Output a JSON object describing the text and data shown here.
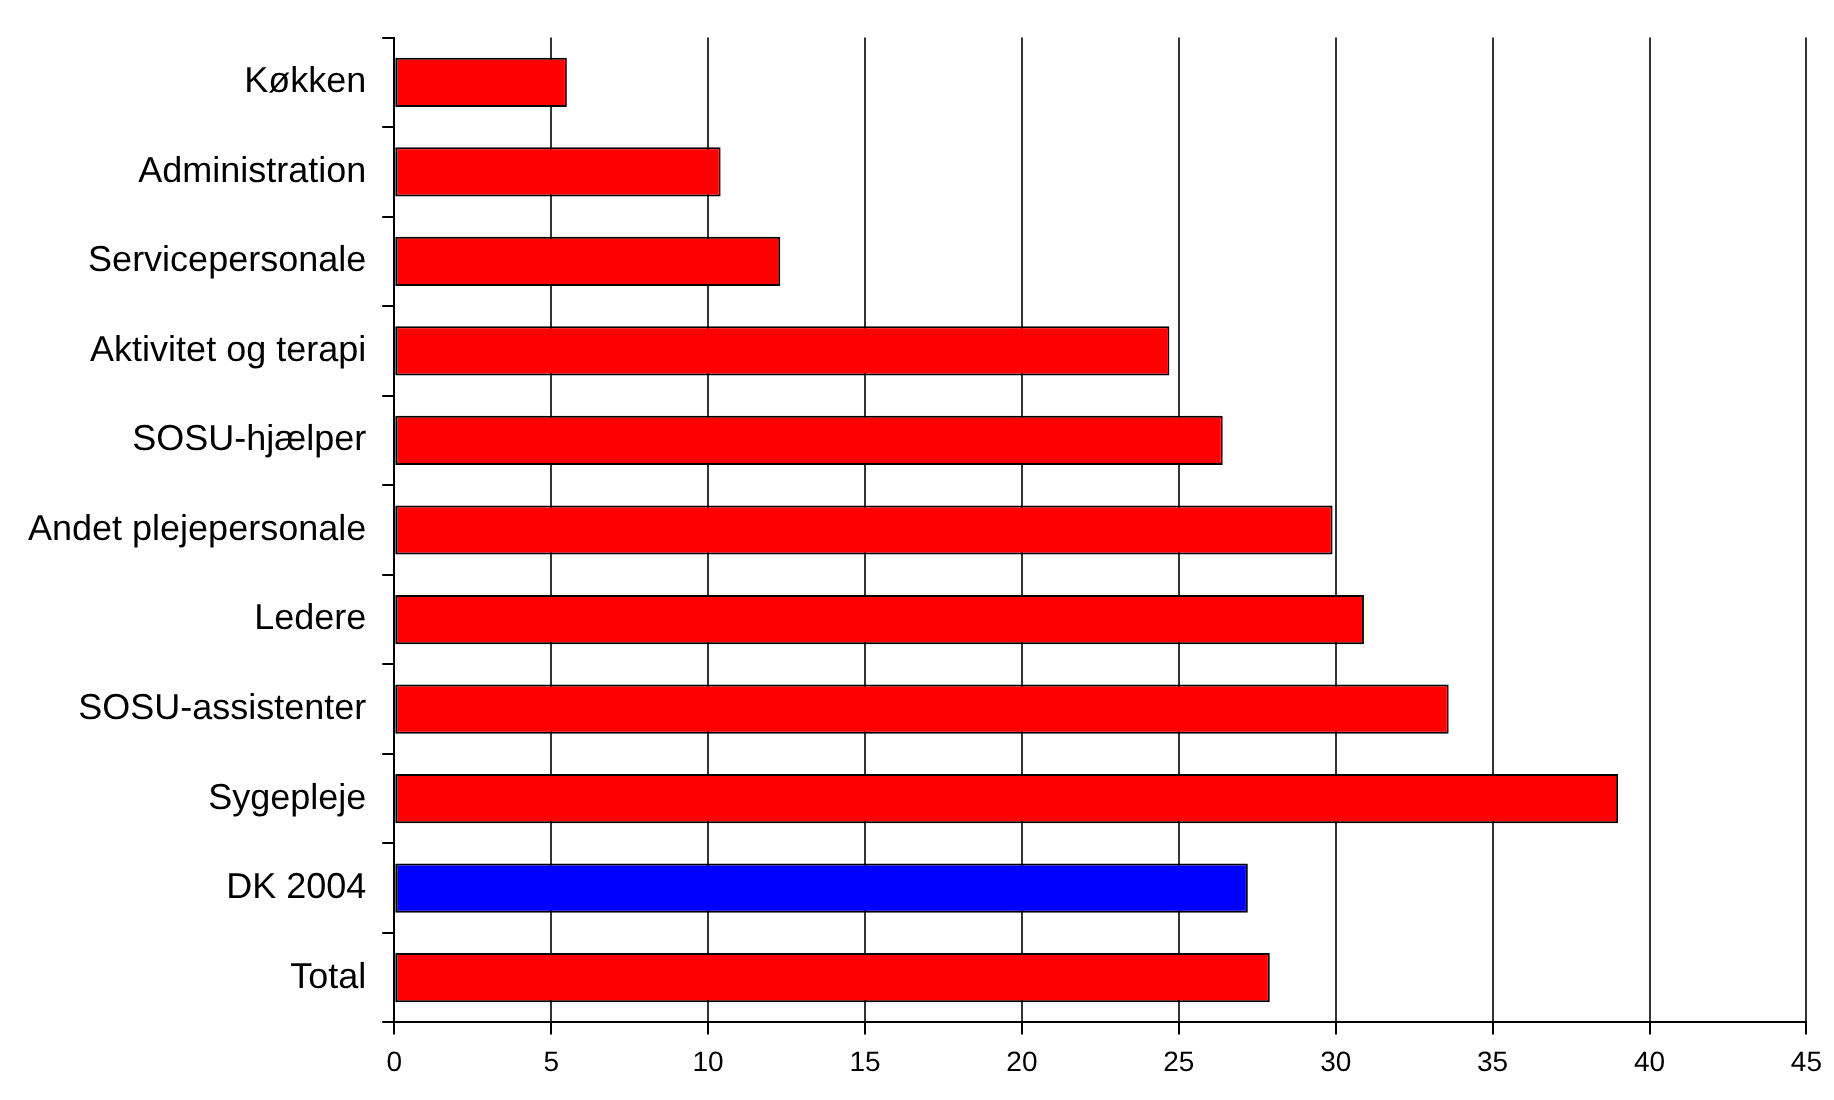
{
  "chart_data": {
    "type": "bar",
    "orientation": "horizontal",
    "categories": [
      "Køkken",
      "Administration",
      "Servicepersonale",
      "Aktivitet og terapi",
      "SOSU-hjælper",
      "Andet plejepersonale",
      "Ledere",
      "SOSU-assistenter",
      "Sygepleje",
      "DK 2004",
      "Total"
    ],
    "values": [
      5.5,
      10.4,
      12.3,
      24.7,
      26.4,
      29.9,
      30.9,
      33.6,
      39.0,
      27.2,
      27.9
    ],
    "colors": [
      "#ff0000",
      "#ff0000",
      "#ff0000",
      "#ff0000",
      "#ff0000",
      "#ff0000",
      "#ff0000",
      "#ff0000",
      "#ff0000",
      "#0000ff",
      "#ff0000"
    ],
    "xlim": [
      0,
      45
    ],
    "xticks": [
      0,
      5,
      10,
      15,
      20,
      25,
      30,
      35,
      40,
      45
    ],
    "grid": "x",
    "legend": false
  }
}
